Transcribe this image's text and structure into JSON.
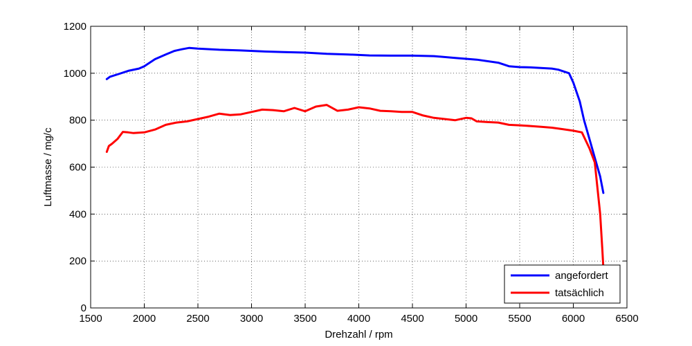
{
  "chart_data": {
    "type": "line",
    "title": "",
    "xlabel": "Drehzahl / rpm",
    "ylabel": "Luftmasse / mg/c",
    "xlim": [
      1500,
      6500
    ],
    "ylim": [
      0,
      1200
    ],
    "xticks": [
      1500,
      2000,
      2500,
      3000,
      3500,
      4000,
      4500,
      5000,
      5500,
      6000,
      6500
    ],
    "yticks": [
      0,
      200,
      400,
      600,
      800,
      1000,
      1200
    ],
    "grid": true,
    "legend_position": "bottom-right",
    "series": [
      {
        "name": "angefordert",
        "color": "#0000ff",
        "x": [
          1650,
          1680,
          1750,
          1850,
          1950,
          2000,
          2100,
          2200,
          2280,
          2350,
          2420,
          2500,
          2700,
          2900,
          3100,
          3300,
          3500,
          3700,
          3900,
          4100,
          4300,
          4500,
          4700,
          4900,
          5100,
          5300,
          5400,
          5500,
          5600,
          5800,
          5860,
          5960,
          6000,
          6060,
          6100,
          6150,
          6200,
          6250,
          6280
        ],
        "y": [
          975,
          985,
          995,
          1010,
          1020,
          1030,
          1060,
          1080,
          1095,
          1102,
          1108,
          1105,
          1100,
          1097,
          1093,
          1090,
          1088,
          1083,
          1080,
          1076,
          1075,
          1075,
          1073,
          1065,
          1058,
          1045,
          1030,
          1026,
          1025,
          1020,
          1015,
          1000,
          960,
          880,
          800,
          720,
          640,
          560,
          490
        ]
      },
      {
        "name": "tatsächlich",
        "color": "#ff0000",
        "x": [
          1650,
          1670,
          1700,
          1750,
          1800,
          1850,
          1900,
          2000,
          2100,
          2200,
          2300,
          2400,
          2500,
          2600,
          2700,
          2800,
          2900,
          3000,
          3100,
          3200,
          3300,
          3400,
          3500,
          3600,
          3700,
          3800,
          3900,
          4000,
          4100,
          4200,
          4300,
          4400,
          4500,
          4600,
          4700,
          4800,
          4900,
          5000,
          5050,
          5100,
          5200,
          5300,
          5400,
          5500,
          5600,
          5700,
          5800,
          5900,
          6000,
          6080,
          6150,
          6200,
          6250,
          6270,
          6280
        ],
        "y": [
          665,
          690,
          700,
          720,
          750,
          748,
          745,
          748,
          760,
          780,
          790,
          795,
          805,
          815,
          828,
          822,
          825,
          835,
          845,
          843,
          838,
          852,
          838,
          858,
          865,
          840,
          845,
          855,
          850,
          840,
          838,
          835,
          835,
          820,
          810,
          805,
          800,
          810,
          808,
          795,
          792,
          790,
          780,
          778,
          775,
          772,
          768,
          762,
          755,
          748,
          680,
          620,
          400,
          250,
          170
        ]
      }
    ]
  }
}
